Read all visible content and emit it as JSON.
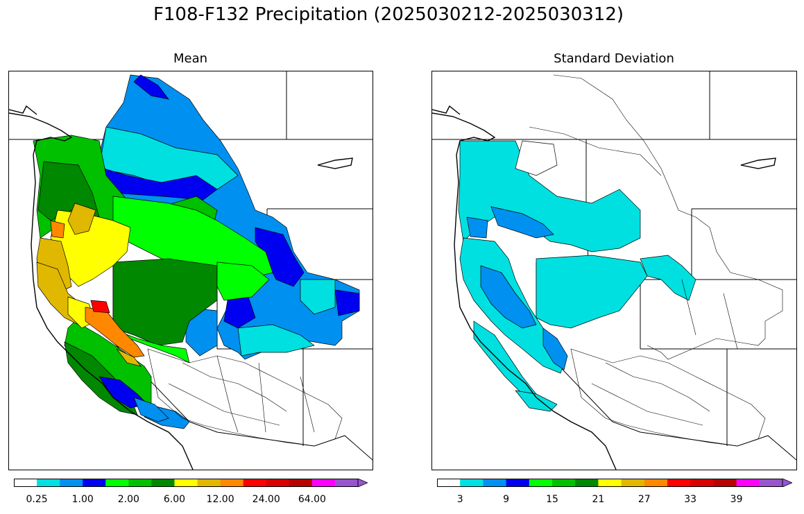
{
  "title": "F108-F132 Precipitation (2025030212-2025030312)",
  "panels": [
    {
      "id": "mean",
      "title": "Mean",
      "colorbar": {
        "colors": [
          "#ffffff",
          "#00e0e0",
          "#0090f0",
          "#0000f0",
          "#00ff00",
          "#00c000",
          "#008800",
          "#ffff00",
          "#e0b800",
          "#ff8800",
          "#ff0000",
          "#d80000",
          "#b80000",
          "#ff00ff",
          "#9955cc"
        ],
        "ticks": [
          "0.25",
          "1.00",
          "2.00",
          "6.00",
          "12.00",
          "24.00",
          "64.00"
        ],
        "extend": "max"
      }
    },
    {
      "id": "std",
      "title": "Standard Deviation",
      "colorbar": {
        "colors": [
          "#ffffff",
          "#00e0e0",
          "#0090f0",
          "#0000f0",
          "#00ff00",
          "#00c000",
          "#008800",
          "#ffff00",
          "#e0b800",
          "#ff8800",
          "#ff0000",
          "#d80000",
          "#b80000",
          "#ff00ff",
          "#9955cc"
        ],
        "ticks": [
          "3",
          "9",
          "15",
          "21",
          "27",
          "33",
          "39"
        ],
        "extend": "max"
      }
    }
  ],
  "colors": {
    "green_dark": "#008800",
    "green_mid": "#00c000",
    "green_bright": "#00ff00",
    "yellow": "#ffff00",
    "gold": "#e0b800",
    "orange": "#ff8800",
    "red": "#ff0000",
    "blue": "#0000f0",
    "blue_mid": "#0090f0",
    "cyan": "#00e0e0"
  }
}
